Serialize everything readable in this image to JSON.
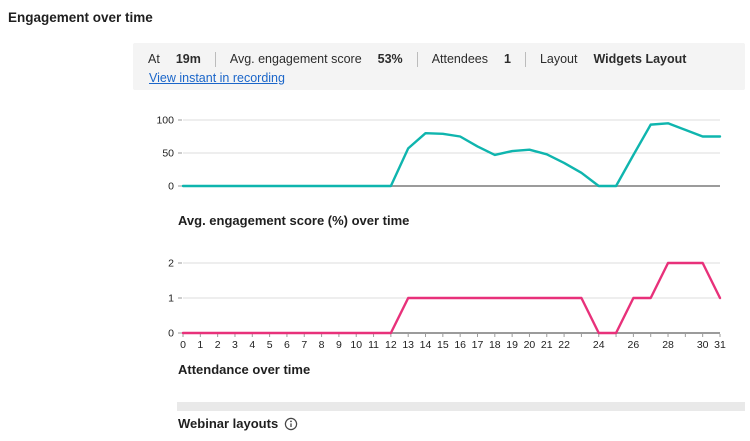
{
  "page": {
    "title": "Engagement over time"
  },
  "tooltip": {
    "stats": [
      {
        "label": "At",
        "value": "19m"
      },
      {
        "label": "Avg. engagement score",
        "value": "53%"
      },
      {
        "label": "Attendees",
        "value": "1"
      },
      {
        "label": "Layout",
        "value": "Widgets Layout"
      }
    ],
    "link_label": "View instant in recording"
  },
  "footer": {
    "webinar_layouts_label": "Webinar layouts",
    "info_icon": "info-circle-icon"
  },
  "colors": {
    "engagement_line": "#0fb5ae",
    "attendance_line": "#e8317a",
    "link_blue": "#1b66c9",
    "grid_light": "#dcdcdc",
    "axis_gray": "#9b9b9b",
    "card_bg": "#f4f4f4"
  },
  "chart_data": [
    {
      "type": "line",
      "title": "Avg. engagement score (%) over time",
      "color": "#0fb5ae",
      "x": [
        0,
        1,
        2,
        3,
        4,
        5,
        6,
        7,
        8,
        9,
        10,
        11,
        12,
        13,
        14,
        15,
        16,
        17,
        18,
        19,
        20,
        21,
        22,
        23,
        24,
        25,
        26,
        27,
        28,
        29,
        30,
        31
      ],
      "series": [
        {
          "name": "Avg. engagement score (%)",
          "values": [
            0,
            0,
            0,
            0,
            0,
            0,
            0,
            0,
            0,
            0,
            0,
            0,
            0,
            57,
            80,
            79,
            75,
            60,
            47,
            53,
            55,
            48,
            35,
            20,
            0,
            0,
            47,
            93,
            95,
            85,
            75,
            75
          ]
        }
      ],
      "ylim": [
        0,
        100
      ],
      "yticks": [
        0,
        50,
        100
      ],
      "x_tick_labels": [],
      "grid": true,
      "legend": "none"
    },
    {
      "type": "line",
      "title": "Attendance over time",
      "color": "#e8317a",
      "x": [
        0,
        1,
        2,
        3,
        4,
        5,
        6,
        7,
        8,
        9,
        10,
        11,
        12,
        13,
        14,
        15,
        16,
        17,
        18,
        19,
        20,
        21,
        22,
        23,
        24,
        25,
        26,
        27,
        28,
        29,
        30,
        31
      ],
      "series": [
        {
          "name": "Attendees",
          "values": [
            0,
            0,
            0,
            0,
            0,
            0,
            0,
            0,
            0,
            0,
            0,
            0,
            0,
            1,
            1,
            1,
            1,
            1,
            1,
            1,
            1,
            1,
            1,
            1,
            0,
            0,
            1,
            1,
            2,
            2,
            2,
            1
          ]
        }
      ],
      "ylim": [
        0,
        2
      ],
      "yticks": [
        0,
        1,
        2
      ],
      "x_tick_labels": [
        "0",
        "1",
        "2",
        "3",
        "4",
        "5",
        "6",
        "7",
        "8",
        "9",
        "10",
        "11",
        "12",
        "13",
        "14",
        "15",
        "16",
        "17",
        "18",
        "19",
        "20",
        "21",
        "22",
        "24",
        "26",
        "28",
        "30",
        "31"
      ],
      "grid": true,
      "legend": "none"
    }
  ]
}
